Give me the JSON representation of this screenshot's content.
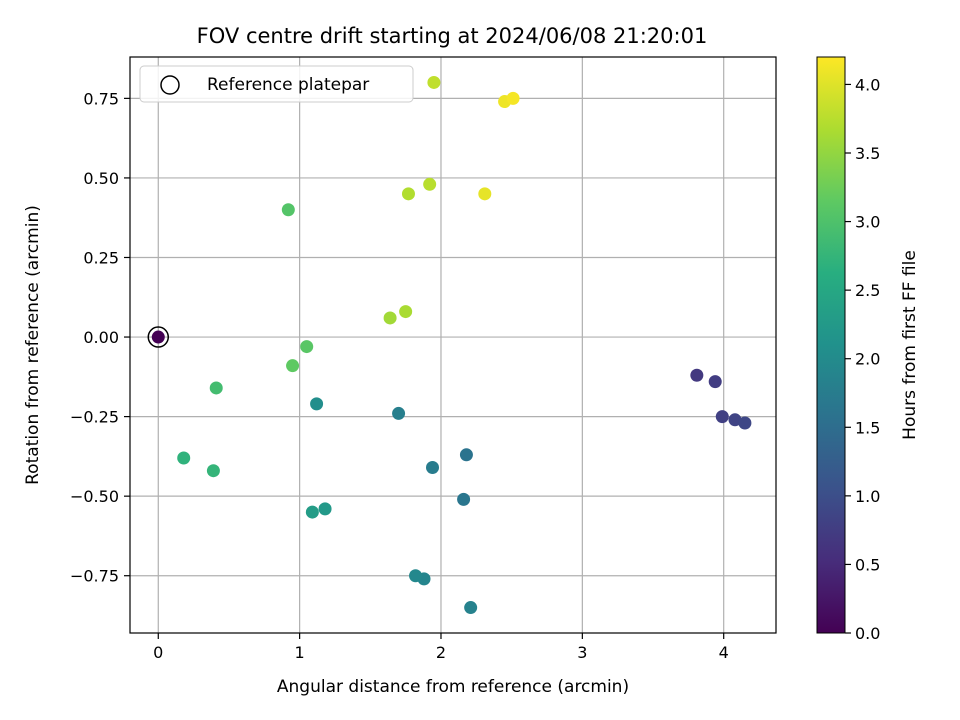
{
  "chart_data": {
    "type": "scatter",
    "title": "FOV centre drift starting at 2024/06/08 21:20:01",
    "xlabel": "Angular distance from reference (arcmin)",
    "ylabel": "Rotation from reference (arcmin)",
    "xlim": [
      -0.2,
      4.37
    ],
    "ylim": [
      -0.93,
      0.88
    ],
    "xticks": [
      0,
      1,
      2,
      3,
      4
    ],
    "xtick_labels": [
      "0",
      "1",
      "2",
      "3",
      "4"
    ],
    "yticks": [
      -0.75,
      -0.5,
      -0.25,
      0.0,
      0.25,
      0.5,
      0.75
    ],
    "ytick_labels": [
      "−0.75",
      "−0.50",
      "−0.25",
      "0.00",
      "0.25",
      "0.50",
      "0.75"
    ],
    "grid": true,
    "colormap": "viridis",
    "colorbar": {
      "label": "Hours from first FF file",
      "range": [
        0.0,
        4.2
      ],
      "ticks": [
        0.0,
        0.5,
        1.0,
        1.5,
        2.0,
        2.5,
        3.0,
        3.5,
        4.0
      ],
      "tick_labels": [
        "0.0",
        "0.5",
        "1.0",
        "1.5",
        "2.0",
        "2.5",
        "3.0",
        "3.5",
        "4.0"
      ]
    },
    "legend": {
      "location": "top-left",
      "entries": [
        "Reference platepar"
      ]
    },
    "reference_point": {
      "x": 0.0,
      "y": 0.0
    },
    "points": [
      {
        "x": 0.0,
        "y": 0.0,
        "hours": 0.0
      },
      {
        "x": 3.81,
        "y": -0.12,
        "hours": 0.7
      },
      {
        "x": 3.94,
        "y": -0.14,
        "hours": 0.75
      },
      {
        "x": 3.99,
        "y": -0.25,
        "hours": 0.8
      },
      {
        "x": 4.08,
        "y": -0.26,
        "hours": 0.85
      },
      {
        "x": 4.15,
        "y": -0.27,
        "hours": 0.9
      },
      {
        "x": 2.18,
        "y": -0.37,
        "hours": 1.6
      },
      {
        "x": 2.16,
        "y": -0.51,
        "hours": 1.65
      },
      {
        "x": 1.94,
        "y": -0.41,
        "hours": 1.75
      },
      {
        "x": 1.7,
        "y": -0.24,
        "hours": 1.8
      },
      {
        "x": 2.21,
        "y": -0.85,
        "hours": 1.85
      },
      {
        "x": 1.88,
        "y": -0.76,
        "hours": 1.9
      },
      {
        "x": 1.82,
        "y": -0.75,
        "hours": 1.95
      },
      {
        "x": 1.12,
        "y": -0.21,
        "hours": 2.05
      },
      {
        "x": 1.18,
        "y": -0.54,
        "hours": 2.25
      },
      {
        "x": 1.09,
        "y": -0.55,
        "hours": 2.3
      },
      {
        "x": 0.39,
        "y": -0.42,
        "hours": 2.75
      },
      {
        "x": 0.18,
        "y": -0.38,
        "hours": 2.7
      },
      {
        "x": 0.41,
        "y": -0.16,
        "hours": 2.9
      },
      {
        "x": 0.95,
        "y": -0.09,
        "hours": 3.15
      },
      {
        "x": 1.05,
        "y": -0.03,
        "hours": 3.1
      },
      {
        "x": 0.92,
        "y": 0.4,
        "hours": 3.05
      },
      {
        "x": 1.64,
        "y": 0.06,
        "hours": 3.6
      },
      {
        "x": 1.75,
        "y": 0.08,
        "hours": 3.65
      },
      {
        "x": 1.77,
        "y": 0.45,
        "hours": 3.7
      },
      {
        "x": 1.92,
        "y": 0.48,
        "hours": 3.75
      },
      {
        "x": 1.95,
        "y": 0.8,
        "hours": 3.8
      },
      {
        "x": 2.31,
        "y": 0.45,
        "hours": 4.05
      },
      {
        "x": 2.45,
        "y": 0.74,
        "hours": 4.1
      },
      {
        "x": 2.51,
        "y": 0.75,
        "hours": 4.15
      }
    ]
  }
}
